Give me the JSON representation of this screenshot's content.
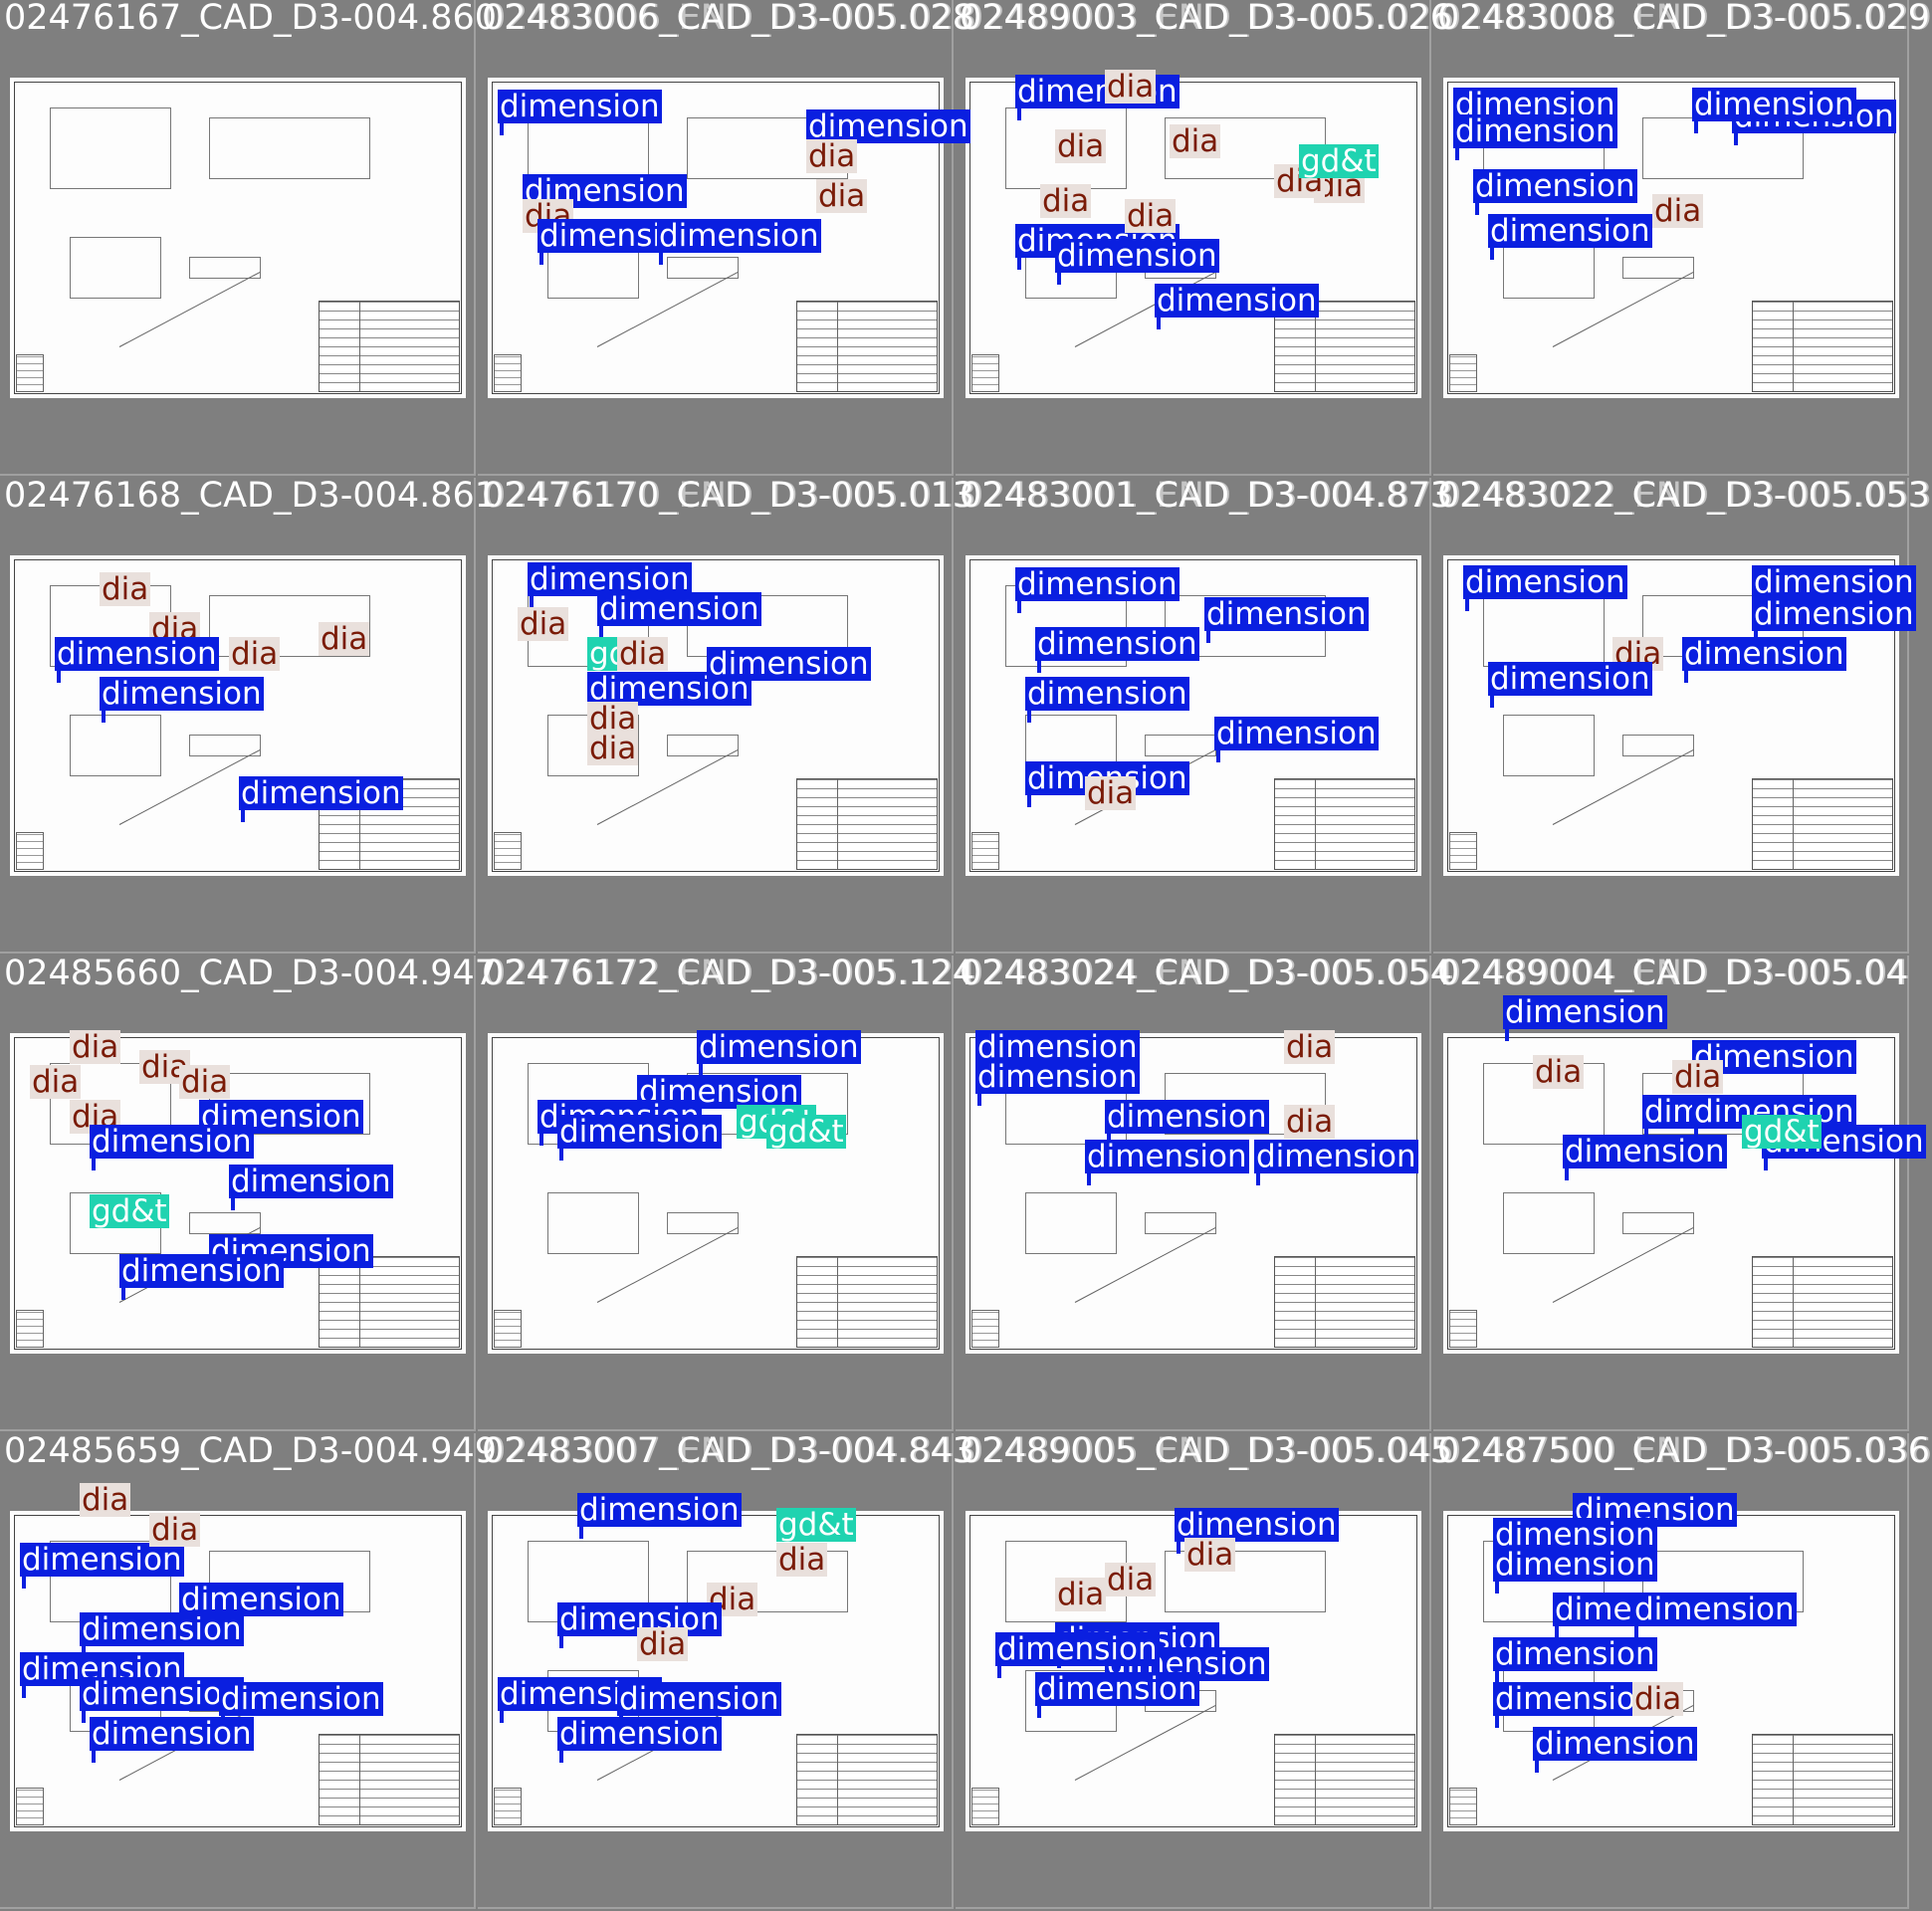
{
  "page": {
    "background": "#7f7f7f"
  },
  "label_colors": {
    "dimension": "#0a1fe0",
    "dia": "#e9e0dc",
    "gdt": "#1fd3b0"
  },
  "label_text": {
    "dimension": "dimension",
    "dia": "dia",
    "gdt": "gd&t"
  },
  "tiles": [
    {
      "title": "02476167_CAD_D3-004.860",
      "ghost": "",
      "labels": []
    },
    {
      "title": "02483006_CAD_D3-005.028",
      "ghost": "02483006_END_D3-005.028",
      "labels": [
        "dimension",
        "dimension",
        "dia",
        "dimension",
        "dia",
        "dia",
        "dimension",
        "dimension"
      ]
    },
    {
      "title": "02489003_CAD_D3-005.026",
      "ghost": "02489003_END_D3-005.026",
      "labels": [
        "dimension",
        "dia",
        "dia",
        "dia",
        "dia",
        "dia",
        "dimension",
        "dia",
        "dia",
        "gdt",
        "dimension",
        "dimension"
      ]
    },
    {
      "title": "02483008_CAD_D3-005.029",
      "ghost": "02483008_END_D3-005.029",
      "labels": [
        "dimension",
        "dimension",
        "dimension",
        "dimension",
        "dimension",
        "dia",
        "dimension"
      ]
    },
    {
      "title": "02476168_CAD_D3-004.861",
      "ghost": "",
      "labels": [
        "dia",
        "dia",
        "dia",
        "dia",
        "dimension",
        "dimension",
        "dimension"
      ]
    },
    {
      "title": "02476170_CAD_D3-005.013",
      "ghost": "02476170_END_D3-005.013",
      "labels": [
        "dimension",
        "dimension",
        "dia",
        "gdt",
        "dia",
        "dimension",
        "dimension",
        "dia",
        "dia"
      ]
    },
    {
      "title": "02483001_CAD_D3-004.873",
      "ghost": "02483001_END_D3-004.873",
      "labels": [
        "dimension",
        "dimension",
        "dimension",
        "dimension",
        "dimension",
        "dimension",
        "dia"
      ]
    },
    {
      "title": "02483022_CAD_D3-005.053",
      "ghost": "02483022_END_D3-005.053",
      "labels": [
        "dimension",
        "dimension",
        "dimension",
        "dia",
        "dimension",
        "dimension"
      ]
    },
    {
      "title": "02485660_CAD_D3-004.947",
      "ghost": "",
      "labels": [
        "dia",
        "dia",
        "dia",
        "dia",
        "dia",
        "dimension",
        "dimension",
        "gdt",
        "dimension",
        "dimension",
        "dimension"
      ]
    },
    {
      "title": "02476172_CAD_D3-005.124",
      "ghost": "02476172_END_D3-005.124",
      "labels": [
        "dimension",
        "dimension",
        "dimension",
        "gdt",
        "gdt",
        "dimension"
      ]
    },
    {
      "title": "02483024_CAD_D3-005.054",
      "ghost": "02483024_END_D3-005.054",
      "labels": [
        "dimension",
        "dimension",
        "dimension",
        "dia",
        "dia",
        "dimension",
        "dimension"
      ]
    },
    {
      "title": "02489004_CAD_D3-005.04",
      "ghost": "02489004_END_D3-005.04",
      "labels": [
        "dimension",
        "dimension",
        "dia",
        "dimension",
        "dimension",
        "dimension",
        "gdt",
        "dimension",
        "dia"
      ]
    },
    {
      "title": "02485659_CAD_D3-004.949",
      "ghost": "",
      "labels": [
        "dia",
        "dimension",
        "dia",
        "dimension",
        "dimension",
        "dimension",
        "dimension",
        "dimension",
        "dimension"
      ]
    },
    {
      "title": "02483007_CAD_D3-004.843",
      "ghost": "02483007_END_D3-004.843",
      "labels": [
        "dimension",
        "gdt",
        "dia",
        "dia",
        "dimension",
        "dia",
        "dimension",
        "dimension",
        "dimension"
      ]
    },
    {
      "title": "02489005_CAD_D3-005.045",
      "ghost": "02489005_END_D3-005.045",
      "labels": [
        "dimension",
        "dia",
        "dia",
        "dia",
        "dimension",
        "dimension",
        "dimension",
        "dimension"
      ]
    },
    {
      "title": "02487500_CAD_D3-005.036",
      "ghost": "02487500_END_D3-005.036",
      "labels": [
        "dimension",
        "dimension",
        "dimension",
        "dimension",
        "dimension",
        "dimension",
        "dimension",
        "dia",
        "dimension"
      ]
    }
  ]
}
